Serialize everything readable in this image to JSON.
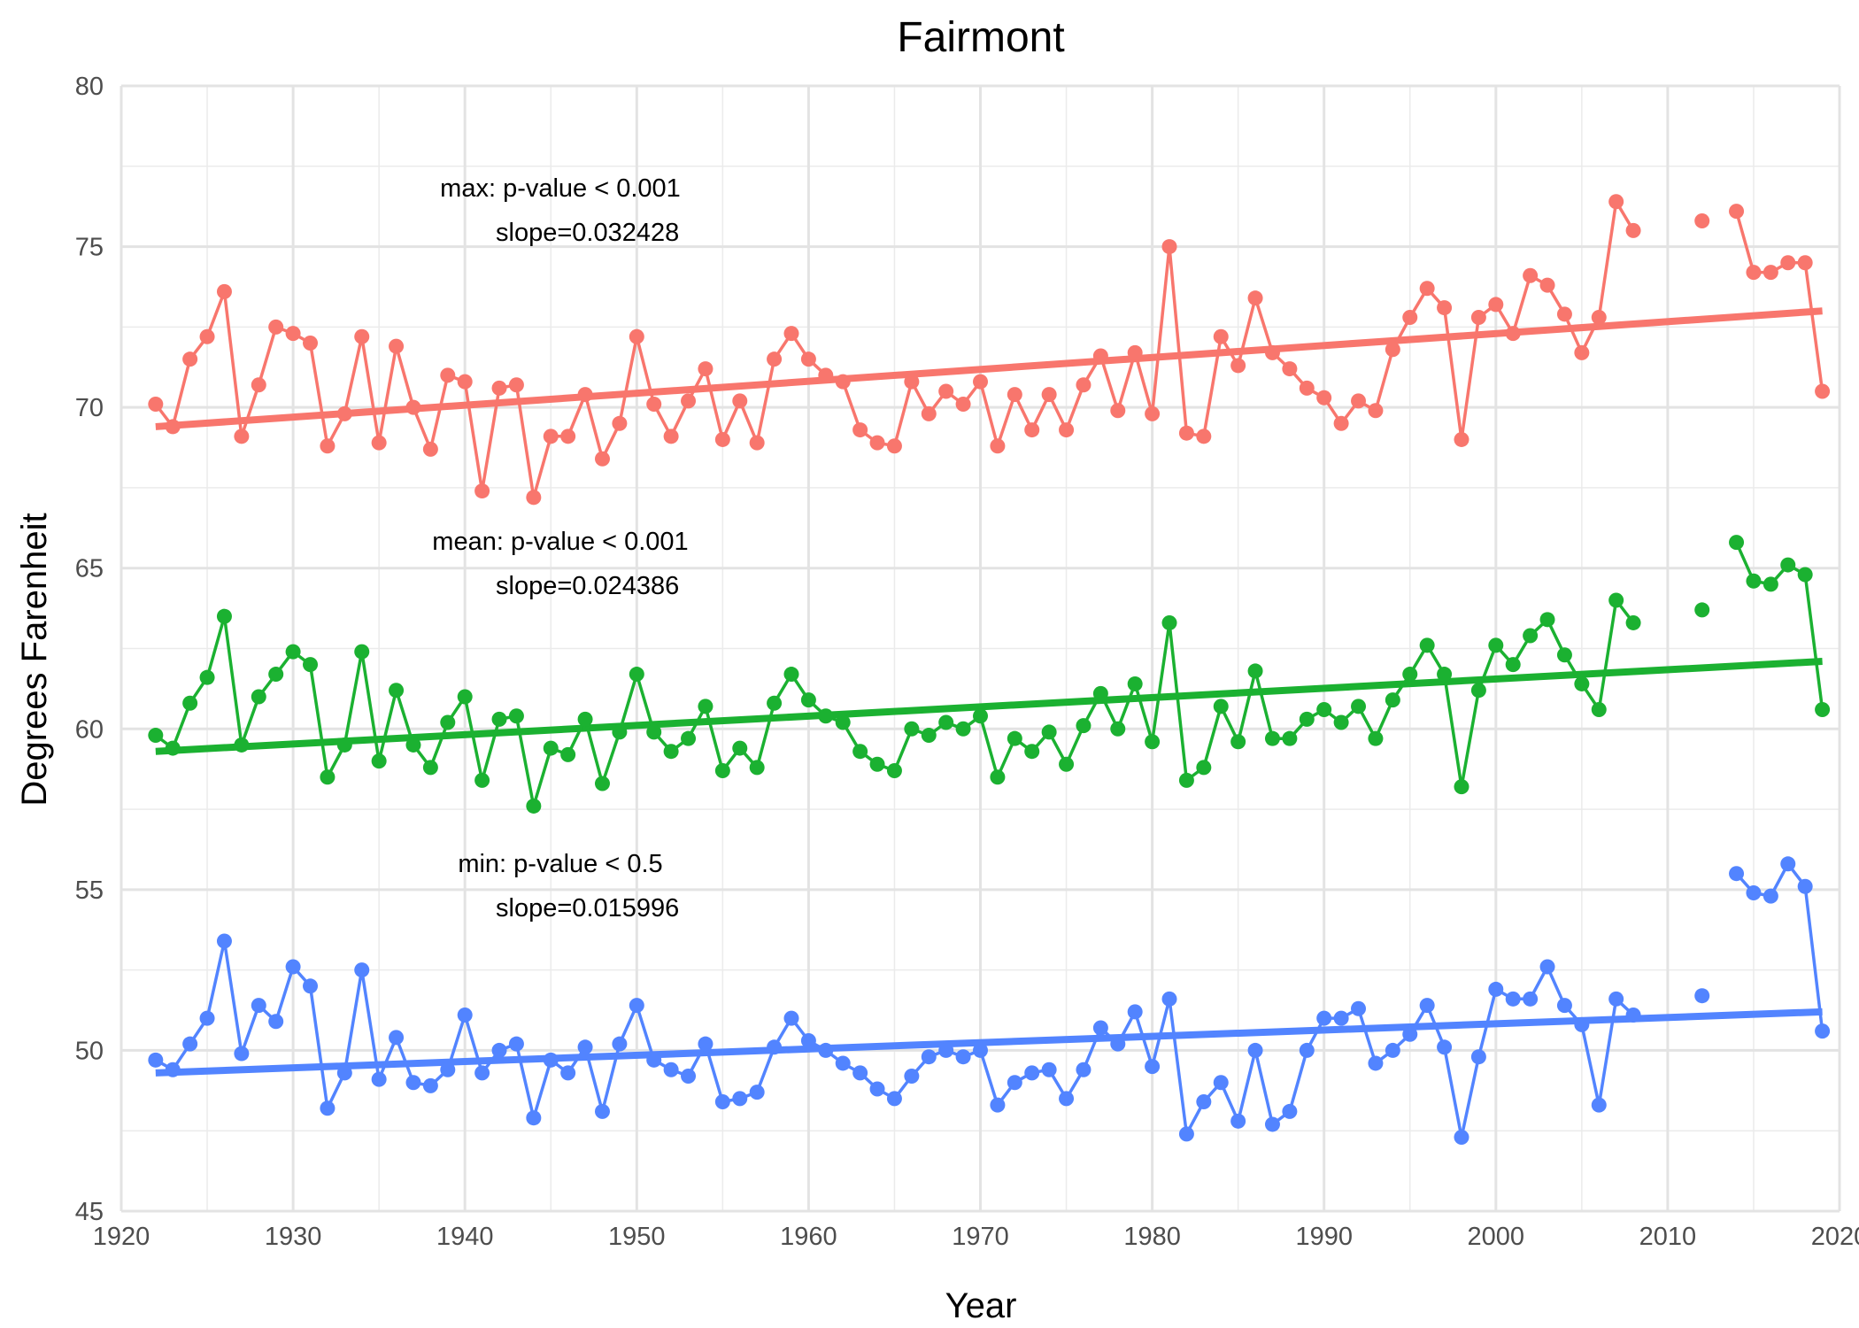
{
  "chart_data": {
    "type": "line",
    "title": "Fairmont",
    "xlabel": "Year",
    "ylabel": "Degrees Farenheit",
    "xlim": [
      1920,
      2020
    ],
    "ylim": [
      45,
      80
    ],
    "x_ticks": [
      1920,
      1930,
      1940,
      1950,
      1960,
      1970,
      1980,
      1990,
      2000,
      2010,
      2020
    ],
    "y_ticks": [
      45,
      50,
      55,
      60,
      65,
      70,
      75,
      80
    ],
    "grid": true,
    "legend": "none",
    "x": [
      1922,
      1923,
      1924,
      1925,
      1926,
      1927,
      1928,
      1929,
      1930,
      1931,
      1932,
      1933,
      1934,
      1935,
      1936,
      1937,
      1938,
      1939,
      1940,
      1941,
      1942,
      1943,
      1944,
      1945,
      1946,
      1947,
      1948,
      1949,
      1950,
      1951,
      1952,
      1953,
      1954,
      1955,
      1956,
      1957,
      1958,
      1959,
      1960,
      1961,
      1962,
      1963,
      1964,
      1965,
      1966,
      1967,
      1968,
      1969,
      1970,
      1971,
      1972,
      1973,
      1974,
      1975,
      1976,
      1977,
      1978,
      1979,
      1980,
      1981,
      1982,
      1983,
      1984,
      1985,
      1986,
      1987,
      1988,
      1989,
      1990,
      1991,
      1992,
      1993,
      1994,
      1995,
      1996,
      1997,
      1998,
      1999,
      2000,
      2001,
      2002,
      2003,
      2004,
      2005,
      2006,
      2007,
      2008,
      2009,
      2010,
      2011,
      2012,
      2013,
      2014,
      2015,
      2016,
      2017,
      2018,
      2019
    ],
    "series": [
      {
        "color": "#F8766D",
        "values": [
          70.1,
          69.4,
          71.5,
          72.2,
          73.6,
          69.1,
          70.7,
          72.5,
          72.3,
          72.0,
          68.8,
          69.8,
          72.2,
          68.9,
          71.9,
          70.0,
          68.7,
          71.0,
          70.8,
          67.4,
          70.6,
          70.7,
          67.2,
          69.1,
          69.1,
          70.4,
          68.4,
          69.5,
          72.2,
          70.1,
          69.1,
          70.2,
          71.2,
          69.0,
          70.2,
          68.9,
          71.5,
          72.3,
          71.5,
          71.0,
          70.8,
          69.3,
          68.9,
          68.8,
          70.8,
          69.8,
          70.5,
          70.1,
          70.8,
          68.8,
          70.4,
          69.3,
          70.4,
          69.3,
          70.7,
          71.6,
          69.9,
          71.7,
          69.8,
          75.0,
          69.2,
          69.1,
          72.2,
          71.3,
          73.4,
          71.7,
          71.2,
          70.6,
          70.3,
          69.5,
          70.2,
          69.9,
          71.8,
          72.8,
          73.7,
          73.1,
          69.0,
          72.8,
          73.2,
          72.3,
          74.1,
          73.8,
          72.9,
          71.7,
          72.8,
          76.4,
          75.5,
          null,
          null,
          null,
          75.8,
          null,
          76.1,
          74.2,
          74.2,
          74.5,
          74.5,
          70.5
        ],
        "trend": [
          69.4,
          73.0
        ],
        "annotation": [
          "max: p-value < 0.001",
          "slope=0.032428"
        ]
      },
      {
        "color": "#1BB131",
        "values": [
          59.8,
          59.4,
          60.8,
          61.6,
          63.5,
          59.5,
          61.0,
          61.7,
          62.4,
          62.0,
          58.5,
          59.5,
          62.4,
          59.0,
          61.2,
          59.5,
          58.8,
          60.2,
          61.0,
          58.4,
          60.3,
          60.4,
          57.6,
          59.4,
          59.2,
          60.3,
          58.3,
          59.9,
          61.7,
          59.9,
          59.3,
          59.7,
          60.7,
          58.7,
          59.4,
          58.8,
          60.8,
          61.7,
          60.9,
          60.4,
          60.2,
          59.3,
          58.9,
          58.7,
          60.0,
          59.8,
          60.2,
          60.0,
          60.4,
          58.5,
          59.7,
          59.3,
          59.9,
          58.9,
          60.1,
          61.1,
          60.0,
          61.4,
          59.6,
          63.3,
          58.4,
          58.8,
          60.7,
          59.6,
          61.8,
          59.7,
          59.7,
          60.3,
          60.6,
          60.2,
          60.7,
          59.7,
          60.9,
          61.7,
          62.6,
          61.7,
          58.2,
          61.2,
          62.6,
          62.0,
          62.9,
          63.4,
          62.3,
          61.4,
          60.6,
          64.0,
          63.3,
          null,
          null,
          null,
          63.7,
          null,
          65.8,
          64.6,
          64.5,
          65.1,
          64.8,
          60.6
        ],
        "trend": [
          59.3,
          62.1
        ],
        "annotation": [
          "mean: p-value < 0.001",
          "slope=0.024386"
        ]
      },
      {
        "color": "#5284FF",
        "values": [
          49.7,
          49.4,
          50.2,
          51.0,
          53.4,
          49.9,
          51.4,
          50.9,
          52.6,
          52.0,
          48.2,
          49.3,
          52.5,
          49.1,
          50.4,
          49.0,
          48.9,
          49.4,
          51.1,
          49.3,
          50.0,
          50.2,
          47.9,
          49.7,
          49.3,
          50.1,
          48.1,
          50.2,
          51.4,
          49.7,
          49.4,
          49.2,
          50.2,
          48.4,
          48.5,
          48.7,
          50.1,
          51.0,
          50.3,
          50.0,
          49.6,
          49.3,
          48.8,
          48.5,
          49.2,
          49.8,
          50.0,
          49.8,
          50.0,
          48.3,
          49.0,
          49.3,
          49.4,
          48.5,
          49.4,
          50.7,
          50.2,
          51.2,
          49.5,
          51.6,
          47.4,
          48.4,
          49.0,
          47.8,
          50.0,
          47.7,
          48.1,
          50.0,
          51.0,
          51.0,
          51.3,
          49.6,
          50.0,
          50.5,
          51.4,
          50.1,
          47.3,
          49.8,
          51.9,
          51.6,
          51.6,
          52.6,
          51.4,
          50.8,
          48.3,
          51.6,
          51.1,
          null,
          null,
          null,
          51.7,
          null,
          55.5,
          54.9,
          54.8,
          55.8,
          55.1,
          50.6
        ],
        "trend": [
          49.3,
          51.2
        ],
        "annotation": [
          "min: p-value < 0.5",
          "slope=0.015996"
        ]
      }
    ]
  }
}
